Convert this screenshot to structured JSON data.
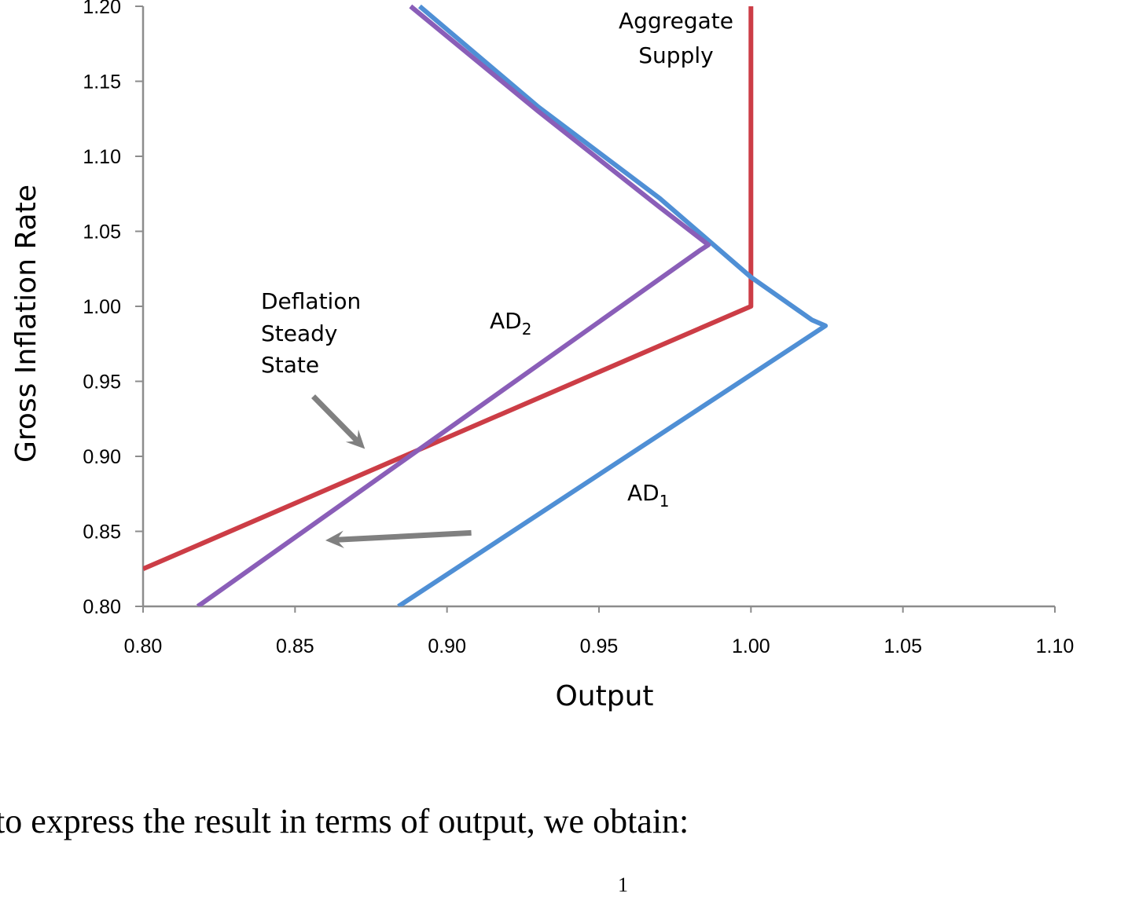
{
  "chart_data": {
    "type": "line",
    "xlabel": "Output",
    "ylabel": "Gross Inflation Rate",
    "xlim": [
      0.8,
      1.1
    ],
    "ylim": [
      0.8,
      1.2
    ],
    "x_ticks": [
      "0.80",
      "0.85",
      "0.90",
      "0.95",
      "1.00",
      "1.05",
      "1.10"
    ],
    "y_ticks": [
      "0.80",
      "0.85",
      "0.90",
      "0.95",
      "1.00",
      "1.05",
      "1.10",
      "1.15",
      "1.20"
    ],
    "series": [
      {
        "name": "Aggregate Supply",
        "color": "#cc3d46",
        "points": [
          [
            0.8,
            0.825
          ],
          [
            1.0,
            1.0
          ],
          [
            1.0,
            1.2
          ]
        ]
      },
      {
        "name": "AD1",
        "color": "#4f8fd5",
        "points": [
          [
            0.884,
            0.8
          ],
          [
            1.0245,
            0.987
          ],
          [
            1.02,
            0.991
          ],
          [
            1.0,
            1.0195
          ],
          [
            0.97,
            1.072
          ],
          [
            0.93,
            1.133
          ],
          [
            0.891,
            1.2
          ]
        ]
      },
      {
        "name": "AD2",
        "color": "#8a5eb8",
        "points": [
          [
            0.818,
            0.8
          ],
          [
            0.983,
            1.037
          ],
          [
            0.986,
            1.041
          ],
          [
            0.97,
            1.066
          ],
          [
            0.93,
            1.13
          ],
          [
            0.888,
            1.2
          ]
        ]
      }
    ],
    "annotations": {
      "aggregate_supply": [
        "Aggregate",
        "Supply"
      ],
      "deflation_steady_state": [
        "Deflation",
        "Steady",
        "State"
      ],
      "ad1": {
        "main": "AD",
        "sub": "1"
      },
      "ad2": {
        "main": "AD",
        "sub": "2"
      }
    },
    "arrows": [
      {
        "name": "deflation-steady-state-arrow",
        "from": [
          0.856,
          0.94
        ],
        "to": [
          0.873,
          0.905
        ],
        "color": "#808080"
      },
      {
        "name": "shift-arrow",
        "from": [
          0.908,
          0.849
        ],
        "to": [
          0.86,
          0.844
        ],
        "color": "#808080"
      }
    ]
  },
  "page": {
    "body_text": "to express the result in terms of output, we obtain:",
    "formula_fragment": "1"
  }
}
